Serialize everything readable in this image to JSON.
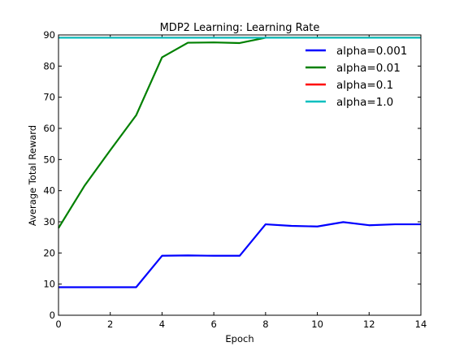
{
  "chart_data": {
    "type": "line",
    "title": "MDP2 Learning: Learning Rate",
    "xlabel": "Epoch",
    "ylabel": "Average Total Reward",
    "xlim": [
      0,
      14
    ],
    "ylim": [
      0,
      90
    ],
    "xticks": [
      0,
      2,
      4,
      6,
      8,
      10,
      12,
      14
    ],
    "yticks": [
      0,
      10,
      20,
      30,
      40,
      50,
      60,
      70,
      80,
      90
    ],
    "grid": false,
    "legend_position": "top-right",
    "x": [
      0,
      1,
      2,
      3,
      4,
      5,
      6,
      7,
      8,
      9,
      10,
      11,
      12,
      13,
      14
    ],
    "series": [
      {
        "name": "alpha=0.001",
        "color": "#0000ff",
        "values": [
          9,
          9,
          9,
          9,
          19.1,
          19.2,
          19.1,
          19.1,
          29.2,
          28.7,
          28.5,
          29.9,
          28.9,
          29.2,
          29.2
        ]
      },
      {
        "name": "alpha=0.01",
        "color": "#008000",
        "values": [
          28,
          41.5,
          53,
          64.2,
          82.8,
          87.5,
          87.6,
          87.4,
          89.1,
          89.1,
          89.1,
          89.1,
          89.1,
          89.1,
          89.1
        ]
      },
      {
        "name": "alpha=0.1",
        "color": "#ff0000",
        "values": [
          89.1,
          89.1,
          89.1,
          89.1,
          89.1,
          89.1,
          89.1,
          89.1,
          89.1,
          89.1,
          89.1,
          89.1,
          89.1,
          89.1,
          89.1
        ]
      },
      {
        "name": "alpha=1.0",
        "color": "#00bfbf",
        "values": [
          89.1,
          89.1,
          89.1,
          89.1,
          89.1,
          89.1,
          89.1,
          89.1,
          89.1,
          89.1,
          89.1,
          89.1,
          89.1,
          89.1,
          89.1
        ]
      }
    ]
  }
}
